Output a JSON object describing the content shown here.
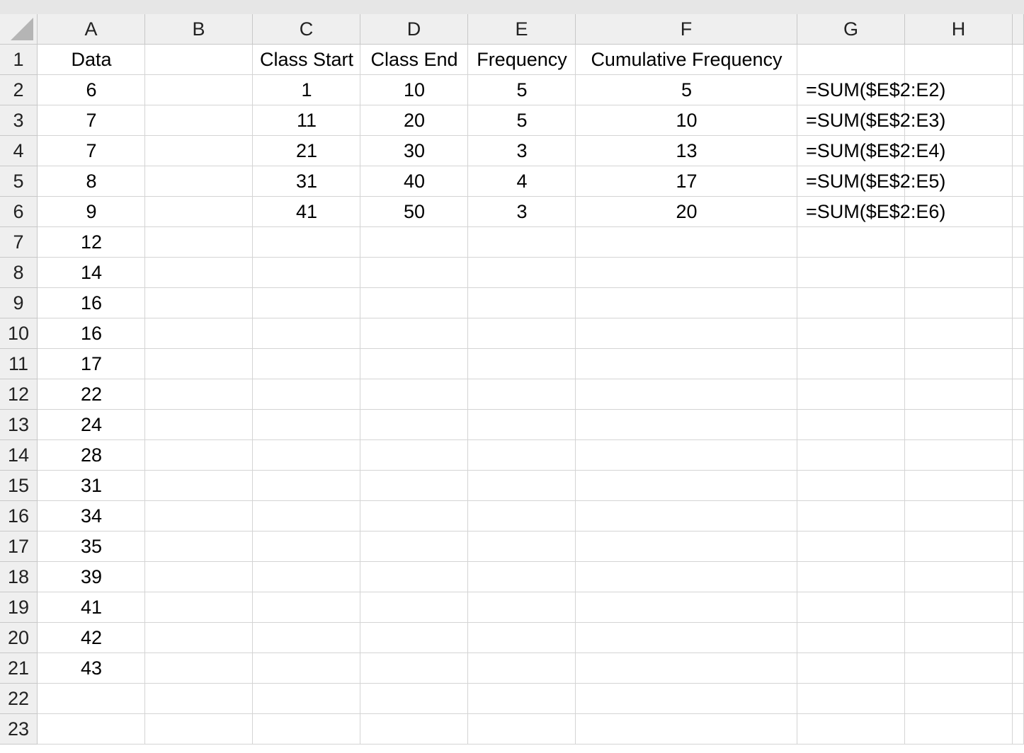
{
  "sheet": {
    "column_headers": [
      "A",
      "B",
      "C",
      "D",
      "E",
      "F",
      "G",
      "H"
    ],
    "row_headers": [
      1,
      2,
      3,
      4,
      5,
      6,
      7,
      8,
      9,
      10,
      11,
      12,
      13,
      14,
      15,
      16,
      17,
      18,
      19,
      20,
      21,
      22,
      23
    ],
    "rows": [
      [
        "Data",
        null,
        "Class Start",
        "Class End",
        "Frequency",
        "Cumulative Frequency",
        null,
        null
      ],
      [
        6,
        null,
        1,
        10,
        5,
        5,
        "=SUM($E$2:E2)",
        null
      ],
      [
        7,
        null,
        11,
        20,
        5,
        10,
        "=SUM($E$2:E3)",
        null
      ],
      [
        7,
        null,
        21,
        30,
        3,
        13,
        "=SUM($E$2:E4)",
        null
      ],
      [
        8,
        null,
        31,
        40,
        4,
        17,
        "=SUM($E$2:E5)",
        null
      ],
      [
        9,
        null,
        41,
        50,
        3,
        20,
        "=SUM($E$2:E6)",
        null
      ],
      [
        12,
        null,
        null,
        null,
        null,
        null,
        null,
        null
      ],
      [
        14,
        null,
        null,
        null,
        null,
        null,
        null,
        null
      ],
      [
        16,
        null,
        null,
        null,
        null,
        null,
        null,
        null
      ],
      [
        16,
        null,
        null,
        null,
        null,
        null,
        null,
        null
      ],
      [
        17,
        null,
        null,
        null,
        null,
        null,
        null,
        null
      ],
      [
        22,
        null,
        null,
        null,
        null,
        null,
        null,
        null
      ],
      [
        24,
        null,
        null,
        null,
        null,
        null,
        null,
        null
      ],
      [
        28,
        null,
        null,
        null,
        null,
        null,
        null,
        null
      ],
      [
        31,
        null,
        null,
        null,
        null,
        null,
        null,
        null
      ],
      [
        34,
        null,
        null,
        null,
        null,
        null,
        null,
        null
      ],
      [
        35,
        null,
        null,
        null,
        null,
        null,
        null,
        null
      ],
      [
        39,
        null,
        null,
        null,
        null,
        null,
        null,
        null
      ],
      [
        41,
        null,
        null,
        null,
        null,
        null,
        null,
        null
      ],
      [
        42,
        null,
        null,
        null,
        null,
        null,
        null,
        null
      ],
      [
        43,
        null,
        null,
        null,
        null,
        null,
        null,
        null
      ],
      [
        null,
        null,
        null,
        null,
        null,
        null,
        null,
        null
      ],
      [
        null,
        null,
        null,
        null,
        null,
        null,
        null,
        null
      ]
    ]
  }
}
